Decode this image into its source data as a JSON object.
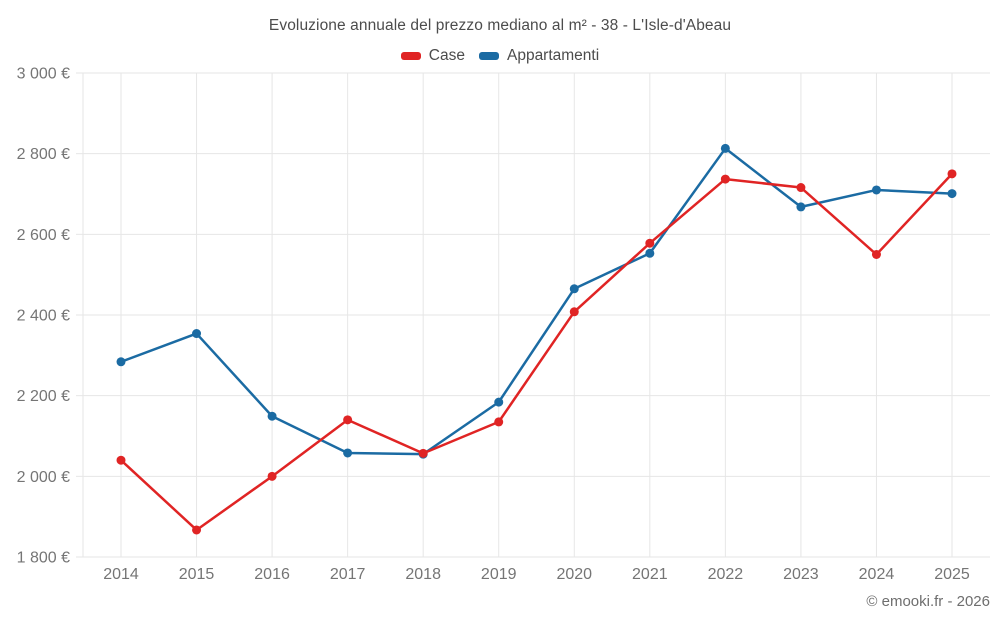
{
  "title": "Evoluzione annuale del prezzo mediano al m² - 38 - L'Isle-d'Abeau",
  "footer": "© emooki.fr - 2026",
  "legend": {
    "items": [
      {
        "id": "case",
        "label": "Case",
        "color": "#e02424"
      },
      {
        "id": "appartamenti",
        "label": "Appartamenti",
        "color": "#1b6ba3"
      }
    ]
  },
  "colors": {
    "case_line": "#e02424",
    "appartamenti_line": "#1b6ba3",
    "grid": "#e6e6e6",
    "axis_text": "#757575",
    "title_text": "#4c4c4c"
  },
  "chart_data": {
    "type": "line",
    "x": [
      "2014",
      "2015",
      "2016",
      "2017",
      "2018",
      "2019",
      "2020",
      "2021",
      "2022",
      "2023",
      "2024",
      "2025"
    ],
    "series": [
      {
        "name": "Case",
        "color": "#e02424",
        "values": [
          2040,
          1867,
          2000,
          2140,
          2057,
          2135,
          2408,
          2578,
          2737,
          2716,
          2550,
          2750
        ]
      },
      {
        "name": "Appartamenti",
        "color": "#1b6ba3",
        "values": [
          2284,
          2354,
          2149,
          2058,
          2055,
          2184,
          2465,
          2553,
          2813,
          2668,
          2710,
          2701
        ]
      }
    ],
    "title": "Evoluzione annuale del prezzo mediano al m² - 38 - L'Isle-d'Abeau",
    "xlabel": "",
    "ylabel": "",
    "ylim": [
      1800,
      3000
    ],
    "ytick_step": 200,
    "ytick_suffix": " €",
    "thousands_separator": " ",
    "grid": true,
    "legend_position": "top",
    "markers": true
  }
}
